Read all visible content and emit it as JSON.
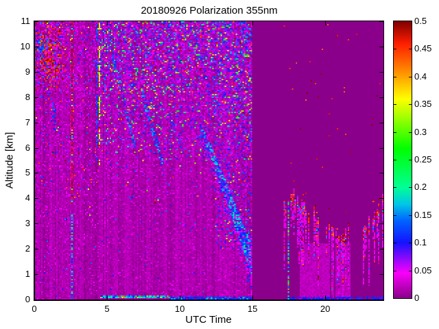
{
  "figure": {
    "title": "20180926 Polarization 355nm",
    "xlabel": "UTC Time",
    "ylabel": "Altitude [km]",
    "background_color": "#ffffff",
    "axes_color": "#000000"
  },
  "axes": {
    "x": {
      "min": 0,
      "max": 24,
      "major_ticks": [
        0,
        5,
        10,
        15,
        20
      ],
      "tick_labels": [
        "0",
        "5",
        "10",
        "15",
        "20"
      ]
    },
    "y": {
      "min": 0,
      "max": 11,
      "major_ticks": [
        0,
        1,
        2,
        3,
        4,
        5,
        6,
        7,
        8,
        9,
        10,
        11
      ],
      "tick_labels": [
        "0",
        "1",
        "2",
        "3",
        "4",
        "5",
        "6",
        "7",
        "8",
        "9",
        "10",
        "11"
      ]
    }
  },
  "colorbar": {
    "min": 0,
    "max": 0.5,
    "ticks": [
      0,
      0.05,
      0.1,
      0.15,
      0.2,
      0.25,
      0.3,
      0.35,
      0.4,
      0.45,
      0.5
    ],
    "tick_labels": [
      "0",
      "0.05",
      "0.1",
      "0.15",
      "0.2",
      "0.25",
      "0.3",
      "0.35",
      "0.4",
      "0.45",
      "0.5"
    ]
  },
  "chart_data": {
    "type": "heatmap",
    "title": "20180926 Polarization 355nm",
    "xlabel": "UTC Time",
    "ylabel": "Altitude [km]",
    "x_range": [
      0,
      24
    ],
    "y_range": [
      0,
      11
    ],
    "value_range": [
      0,
      0.5
    ],
    "grid": false,
    "legend_position": "right-colorbar",
    "background_value_color": "#8B008B",
    "colormap": [
      [
        0.0,
        "#8B008B"
      ],
      [
        0.045,
        "#FA00FA"
      ],
      [
        0.1,
        "#1414FF"
      ],
      [
        0.14,
        "#0064FF"
      ],
      [
        0.17,
        "#00C8E6"
      ],
      [
        0.2,
        "#00FF96"
      ],
      [
        0.27,
        "#00FF00"
      ],
      [
        0.33,
        "#AAFF00"
      ],
      [
        0.36,
        "#FFFF00"
      ],
      [
        0.41,
        "#FF8C00"
      ],
      [
        0.46,
        "#FF1E00"
      ],
      [
        0.5,
        "#800000"
      ]
    ],
    "features": [
      {
        "name": "left-background",
        "type": "noise",
        "t": [
          0,
          14.92
        ],
        "a": [
          0,
          11
        ],
        "density": 1,
        "col_mod": 0.007,
        "palette": [
          [
            1,
            0.004,
            0.022
          ]
        ]
      },
      {
        "name": "left-sparse-speckle",
        "type": "noise",
        "t": [
          0,
          14.92
        ],
        "a": [
          0,
          11
        ],
        "density": 0.05,
        "palette": [
          [
            0.88,
            0.03,
            0.055
          ],
          [
            0.12,
            0.07,
            0.15
          ]
        ]
      },
      {
        "name": "left-alt-speckle",
        "type": "noise",
        "t": [
          0,
          14.92
        ],
        "a": [
          3,
          11
        ],
        "density_grad": {
          "from": 3,
          "to": 11,
          "min": 0.02,
          "max": 0.2
        },
        "palette": [
          [
            0.78,
            0.03,
            0.06
          ],
          [
            0.16,
            0.07,
            0.15
          ],
          [
            0.06,
            0.3,
            0.5
          ]
        ]
      },
      {
        "name": "left-maroon-dots",
        "type": "noise",
        "t": [
          0,
          4.35
        ],
        "a": [
          4,
          11
        ],
        "density": 0.012,
        "palette": [
          [
            1,
            0.42,
            0.5
          ]
        ]
      },
      {
        "name": "dense-colorful-field",
        "type": "noise",
        "t": [
          4.35,
          14.92
        ],
        "a": [
          5.5,
          11
        ],
        "density_grad": {
          "from": 5.5,
          "to": 11,
          "min": 0.06,
          "max": 0.42
        },
        "palette": [
          [
            0.45,
            0.04,
            0.09
          ],
          [
            0.28,
            0.09,
            0.17
          ],
          [
            0.13,
            0.17,
            0.3
          ],
          [
            0.09,
            0.3,
            0.42
          ],
          [
            0.05,
            0.42,
            0.5
          ]
        ]
      },
      {
        "name": "dense-columns-late",
        "type": "noise",
        "t": [
          12.4,
          14.92
        ],
        "a": [
          2,
          11
        ],
        "density": 0.16,
        "palette": [
          [
            0.5,
            0.05,
            0.1
          ],
          [
            0.3,
            0.09,
            0.16
          ],
          [
            0.1,
            0.25,
            0.4
          ],
          [
            0.1,
            0.42,
            0.5
          ]
        ]
      },
      {
        "name": "maroon-cloud",
        "type": "blob",
        "center": [
          1.05,
          9.7
        ],
        "radii": [
          0.8,
          1.15
        ],
        "density": 0.85,
        "palette": [
          [
            0.6,
            0.43,
            0.5
          ],
          [
            0.18,
            0.03,
            0.06
          ],
          [
            0.22,
            0.08,
            0.16
          ]
        ]
      },
      {
        "name": "blue-blob",
        "type": "blob",
        "center": [
          0.45,
          10.0
        ],
        "radii": [
          0.28,
          0.35
        ],
        "density": 0.6,
        "palette": [
          [
            1,
            0.09,
            0.17
          ]
        ]
      },
      {
        "name": "blue-streak-small",
        "type": "blob",
        "center": [
          1.35,
          7.2
        ],
        "radii": [
          0.12,
          0.5
        ],
        "density": 0.55,
        "palette": [
          [
            1,
            0.09,
            0.15
          ]
        ]
      },
      {
        "name": "aerosol-streak-1",
        "type": "streak",
        "pts": [
          [
            5.4,
            9.6
          ],
          [
            7.0,
            5.9
          ]
        ],
        "halfwidth": 0.22,
        "density": 0.5,
        "palette": [
          [
            0.8,
            0.07,
            0.15
          ],
          [
            0.2,
            0.15,
            0.2
          ]
        ]
      },
      {
        "name": "aerosol-streak-2",
        "type": "streak",
        "pts": [
          [
            7.4,
            8.2
          ],
          [
            8.8,
            5.4
          ]
        ],
        "halfwidth": 0.27,
        "density": 0.55,
        "palette": [
          [
            0.8,
            0.07,
            0.16
          ],
          [
            0.2,
            0.15,
            0.2
          ]
        ]
      },
      {
        "name": "aerosol-streak-3",
        "type": "streak",
        "pts": [
          [
            9.2,
            7.3
          ],
          [
            10.3,
            5.8
          ]
        ],
        "halfwidth": 0.18,
        "density": 0.35,
        "palette": [
          [
            1,
            0.06,
            0.13
          ]
        ]
      },
      {
        "name": "aerosol-streak-4",
        "type": "streak",
        "pts": [
          [
            11.0,
            10.6
          ],
          [
            12.1,
            8.1
          ]
        ],
        "halfwidth": 0.25,
        "density": 0.3,
        "palette": [
          [
            1,
            0.06,
            0.13
          ]
        ]
      },
      {
        "name": "descending-layer",
        "type": "streak",
        "pts": [
          [
            11.4,
            6.9
          ],
          [
            12.6,
            5.2
          ],
          [
            13.5,
            3.8
          ],
          [
            14.3,
            2.6
          ],
          [
            14.92,
            1.6
          ]
        ],
        "halfwidth_start": 0.16,
        "halfwidth_end": 0.62,
        "density": 0.85,
        "palette": [
          [
            0.5,
            0.08,
            0.14
          ],
          [
            0.32,
            0.14,
            0.2
          ],
          [
            0.18,
            0.03,
            0.06
          ]
        ],
        "fringe": {
          "extent": 1.0,
          "density": 0.55,
          "palette": [
            [
              0.55,
              0.03,
              0.07
            ],
            [
              0.45,
              0.08,
              0.14
            ]
          ]
        }
      },
      {
        "name": "column-0230",
        "type": "vline",
        "t": [
          2.5,
          2.62
        ],
        "segs": [
          {
            "a": [
              0,
              3.95
            ],
            "density": 0.78,
            "dash": 0.18,
            "palette": [
              [
                0.5,
                0.1,
                0.16
              ],
              [
                0.3,
                0.15,
                0.22
              ],
              [
                0.2,
                0.22,
                0.3
              ]
            ]
          },
          {
            "a": [
              3.95,
              11
            ],
            "density": 0.85,
            "palette": [
              [
                0.78,
                0.46,
                0.5
              ],
              [
                0.12,
                0.1,
                0.2
              ],
              [
                0.1,
                0.3,
                0.4
              ]
            ]
          }
        ]
      },
      {
        "name": "column-0415-blue",
        "type": "vline",
        "t": [
          4.2,
          4.3
        ],
        "segs": [
          {
            "a": [
              5.0,
              11
            ],
            "density": 0.65,
            "dash": 0.3,
            "palette": [
              [
                1,
                0.11,
                0.145
              ]
            ]
          }
        ]
      },
      {
        "name": "column-0427-yellow",
        "type": "vline",
        "t": [
          4.38,
          4.51
        ],
        "segs": [
          {
            "a": [
              5.3,
              11
            ],
            "density": 0.8,
            "dash": 0.4,
            "palette": [
              [
                0.7,
                0.33,
                0.37
              ],
              [
                0.14,
                0.44,
                0.5
              ],
              [
                0.16,
                0.25,
                0.31
              ]
            ]
          }
        ]
      },
      {
        "name": "terminal-edge",
        "type": "vline",
        "t": [
          14.84,
          14.93
        ],
        "segs": [
          {
            "a": [
              0,
              2.6
            ],
            "density": 0.9,
            "palette": [
              [
                0.8,
                0.035,
                0.06
              ],
              [
                0.2,
                0.08,
                0.12
              ]
            ]
          }
        ]
      },
      {
        "name": "ground-line-cyan",
        "type": "hline",
        "t": [
          4.55,
          9.3
        ],
        "a": [
          0.04,
          0.17
        ],
        "density": 0.95,
        "palette": [
          [
            0.55,
            0.14,
            0.2
          ],
          [
            0.25,
            0.09,
            0.13
          ],
          [
            0.12,
            0.3,
            0.45
          ],
          [
            0.08,
            0.45,
            0.5
          ]
        ]
      },
      {
        "name": "ground-line-blue",
        "type": "hline",
        "t": [
          9.3,
          14.92
        ],
        "a": [
          0,
          0.1
        ],
        "density": 0.95,
        "palette": [
          [
            0.8,
            0.09,
            0.13
          ],
          [
            0.2,
            0.13,
            0.18
          ]
        ]
      },
      {
        "name": "data-gap-flat",
        "type": "flat",
        "t": [
          14.93,
          17.05
        ],
        "a": [
          0,
          11
        ],
        "v": 0
      },
      {
        "name": "right-haze",
        "type": "noise",
        "t": [
          18.3,
          21.7
        ],
        "a": [
          0,
          2.2
        ],
        "density": 1,
        "palette": [
          [
            1,
            0.012,
            0.028
          ]
        ]
      },
      {
        "name": "right-sparse-dots",
        "type": "noise",
        "t": [
          17.05,
          24
        ],
        "a": [
          4.5,
          11
        ],
        "density": 0.003,
        "palette": [
          [
            1,
            0.42,
            0.5
          ]
        ]
      },
      {
        "name": "virga-spikes",
        "type": "spikes",
        "t": [
          17.1,
          24
        ],
        "envelope": [
          [
            17.1,
            3.7
          ],
          [
            17.6,
            4.25
          ],
          [
            18,
            4.1
          ],
          [
            18.5,
            3.8
          ],
          [
            19,
            3.55
          ],
          [
            19.5,
            3.3
          ],
          [
            20,
            3.05
          ],
          [
            20.5,
            2.9
          ],
          [
            21,
            2.6
          ],
          [
            21.3,
            2.75
          ],
          [
            21.6,
            3.0
          ],
          [
            21.9,
            2.75
          ],
          [
            22.3,
            2.6
          ],
          [
            22.7,
            2.9
          ],
          [
            23.2,
            3.3
          ],
          [
            23.6,
            3.6
          ],
          [
            23.95,
            3.95
          ]
        ],
        "col_active": 0.62,
        "gap": [
          21.7,
          22.45,
          0.3
        ],
        "depth": [
          0.7,
          2.8
        ],
        "palette_top": [
          [
            0.42,
            0.42,
            0.5
          ],
          [
            0.3,
            0.03,
            0.06
          ],
          [
            0.2,
            0.02,
            0.045
          ],
          [
            0.08,
            0.12,
            0.18
          ]
        ],
        "palette_body": [
          [
            0.72,
            0.025,
            0.05
          ],
          [
            0.15,
            0,
            0
          ],
          [
            0.08,
            0.42,
            0.5
          ],
          [
            0.05,
            0.1,
            0.16
          ]
        ]
      },
      {
        "name": "calibration-column",
        "type": "vline",
        "t": [
          17.4,
          17.52
        ],
        "segs": [
          {
            "a": [
              0,
              3.95
            ],
            "density": 0.92,
            "palette": [
              [
                0.33,
                0.13,
                0.22
              ],
              [
                0.22,
                0.23,
                0.33
              ],
              [
                0.13,
                0.4,
                0.5
              ],
              [
                0.32,
                0.05,
                0.1
              ]
            ]
          }
        ]
      },
      {
        "name": "ground-line-right",
        "type": "hline",
        "t": [
          17.35,
          24
        ],
        "a": [
          0,
          0.09
        ],
        "density": 0.8,
        "palette": [
          [
            1,
            0.08,
            0.12
          ]
        ]
      },
      {
        "name": "dark-column-1",
        "type": "flat",
        "t": [
          20.3,
          20.42
        ],
        "a": [
          0,
          11
        ],
        "v": 0
      },
      {
        "name": "dark-column-2",
        "type": "flat",
        "t": [
          20.58,
          20.68
        ],
        "a": [
          0,
          11
        ],
        "v": 0
      },
      {
        "name": "dark-column-3",
        "type": "flat",
        "t": [
          21.85,
          21.95
        ],
        "a": [
          0,
          11
        ],
        "v": 0
      },
      {
        "name": "dark-column-4",
        "type": "flat",
        "t": [
          22.0,
          22.1
        ],
        "a": [
          0,
          11
        ],
        "v": 0
      }
    ]
  }
}
